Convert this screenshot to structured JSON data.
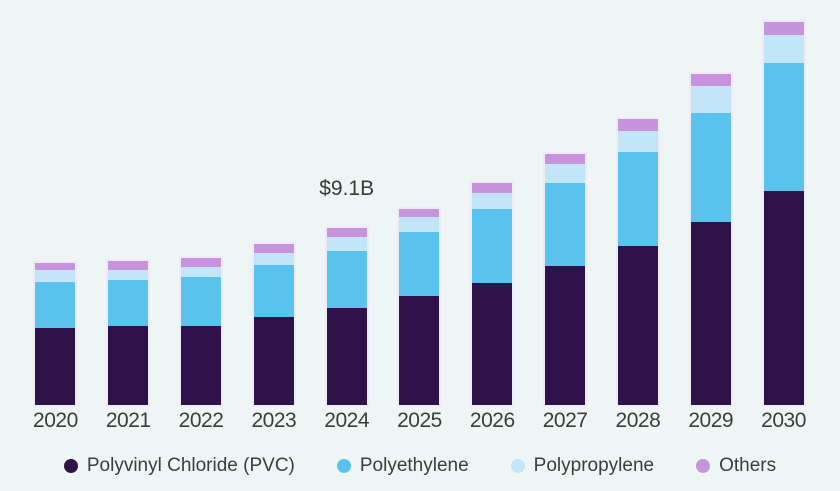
{
  "chart_data": {
    "type": "bar",
    "stacked": true,
    "title": "",
    "unit": "USD billion",
    "categories": [
      "2020",
      "2021",
      "2022",
      "2023",
      "2024",
      "2025",
      "2026",
      "2027",
      "2028",
      "2029",
      "2030"
    ],
    "series": [
      {
        "name": "Polyvinyl Chloride (PVC)",
        "color": "#2f1249",
        "values": [
          3.95,
          4.05,
          4.07,
          4.52,
          4.98,
          5.61,
          6.27,
          7.16,
          8.19,
          9.44,
          11.03
        ]
      },
      {
        "name": "Polyethylene",
        "color": "#59c3ee",
        "values": [
          2.4,
          2.37,
          2.54,
          2.69,
          2.97,
          3.31,
          3.81,
          4.29,
          4.86,
          5.58,
          6.56
        ]
      },
      {
        "name": "Polypropylene",
        "color": "#c2e6f8",
        "values": [
          0.6,
          0.52,
          0.51,
          0.63,
          0.69,
          0.74,
          0.85,
          0.96,
          1.08,
          1.41,
          1.46
        ]
      },
      {
        "name": "Others",
        "color": "#c793dc",
        "values": [
          0.38,
          0.5,
          0.43,
          0.45,
          0.46,
          0.46,
          0.48,
          0.51,
          0.59,
          0.62,
          0.68
        ]
      }
    ],
    "totals": [
      7.33,
      7.44,
      7.55,
      8.29,
      9.1,
      10.12,
      11.41,
      12.92,
      14.72,
      17.05,
      19.73
    ],
    "annotation": {
      "category": "2024",
      "text": "$9.1B"
    },
    "legend_position": "bottom",
    "grid": false,
    "y_axis_visible": false,
    "xlabel": "",
    "ylabel": ""
  },
  "colors": {
    "background": "#edf6f4",
    "label_text": "#3d3d3d",
    "bar_outline": "#f0e9f7"
  }
}
